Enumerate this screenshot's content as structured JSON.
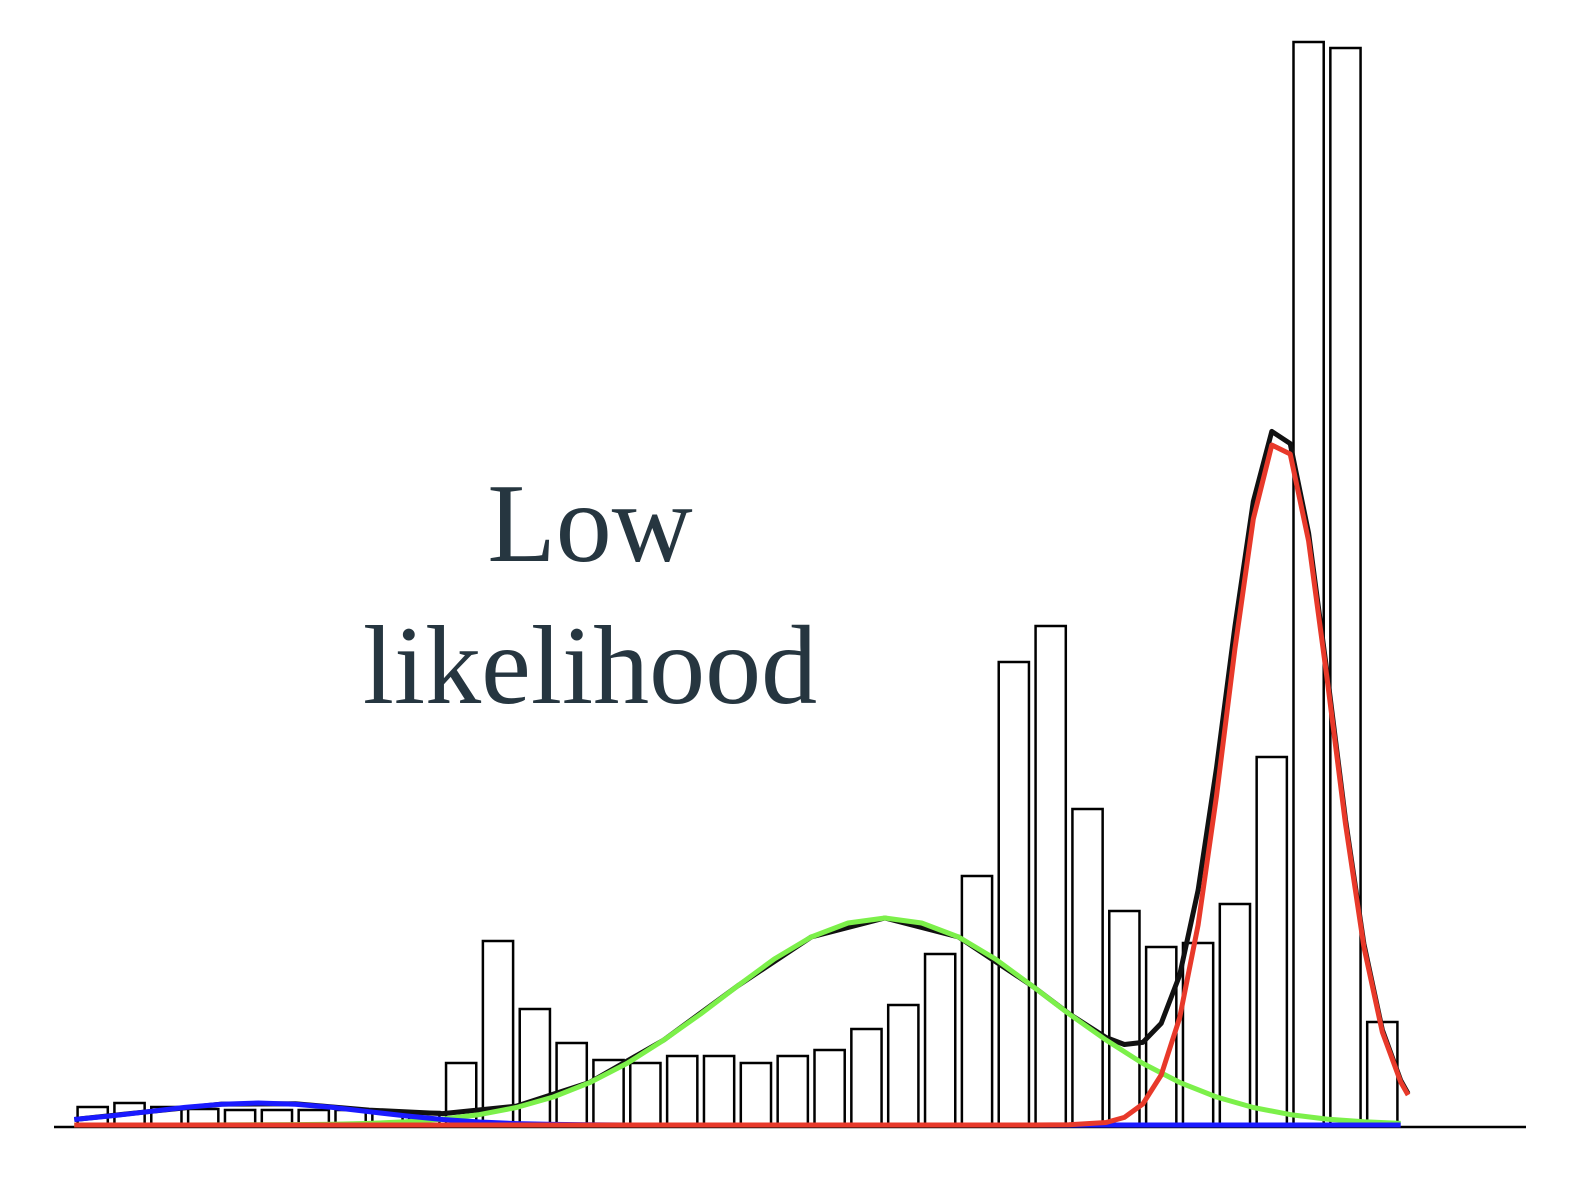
{
  "chart_data": {
    "type": "histogram",
    "annotation": "Low likelihood",
    "bins": [
      0,
      1,
      2,
      3,
      4,
      5,
      6,
      7,
      8,
      9,
      10,
      11,
      12,
      13,
      14,
      15,
      16,
      17,
      18,
      19,
      20,
      21,
      22,
      23,
      24,
      25,
      26,
      27,
      28,
      29,
      30,
      31,
      32,
      33,
      34,
      35,
      36
    ],
    "values": [
      18,
      22,
      18,
      16,
      15,
      15,
      15,
      15,
      12,
      13,
      62,
      184,
      116,
      82,
      65,
      62,
      69,
      69,
      62,
      69,
      75,
      96,
      120,
      171,
      249,
      463,
      499,
      316,
      214,
      178,
      182,
      221,
      368,
      1083,
      1077,
      103
    ],
    "bar_color": "#000000",
    "xlim": [
      -0.55,
      39.4
    ],
    "ylim": [
      0,
      1090
    ],
    "curves": [
      {
        "color": "#111111",
        "x": [
          0,
          2,
          4,
          6,
          8,
          10,
          12,
          14,
          16,
          18,
          20,
          22,
          24,
          26,
          27,
          28,
          28.5,
          29,
          29.5,
          30,
          30.5,
          31,
          31.5,
          32,
          32.5,
          33,
          33.5,
          34,
          34.5,
          35,
          35.5,
          36,
          36.2
        ],
        "values": [
          5.5,
          13.3,
          20.9,
          21.2,
          14.9,
          11.4,
          18.9,
          42.8,
          85,
          139,
          188,
          207,
          188,
          139,
          111.2,
          87.5,
          80.5,
          82.6,
          101.6,
          149.6,
          234.8,
          357,
          498.3,
          623.5,
          693.6,
          681.4,
          591.9,
          452.9,
          305.4,
          181.2,
          95.3,
          44.6,
          31.4
        ]
      },
      {
        "color": "#7cf04a",
        "x": [
          0,
          1,
          2,
          3,
          4,
          5,
          6,
          7,
          8,
          9,
          10,
          11,
          12,
          13,
          14,
          15,
          16,
          17,
          18,
          19,
          20,
          21,
          22,
          23,
          24,
          25,
          26,
          27,
          28,
          29,
          30,
          31,
          32,
          33,
          34,
          35,
          36
        ],
        "values": [
          0,
          0,
          0,
          0,
          0.1,
          0.2,
          0.4,
          0.8,
          1.6,
          3.2,
          5.9,
          10.4,
          17.5,
          28,
          42.6,
          61.6,
          85,
          111,
          139,
          166,
          188,
          202,
          207,
          202,
          188,
          166,
          139,
          111,
          85,
          61.6,
          42.6,
          28,
          17.5,
          10.4,
          5.9,
          3.2,
          1.6
        ]
      },
      {
        "color": "#1a1aff",
        "x": [
          0,
          1,
          2,
          3,
          4,
          5,
          6,
          7,
          8,
          9,
          10,
          11,
          12,
          13,
          14,
          15,
          16,
          17,
          18,
          19,
          20,
          21,
          22,
          23,
          24,
          25,
          26,
          27,
          28,
          29,
          30,
          31,
          32,
          33,
          34,
          35,
          36
        ],
        "values": [
          5.5,
          9.1,
          13.3,
          17.6,
          20.8,
          22,
          20.8,
          17.6,
          13.3,
          9.1,
          5.5,
          3,
          1.4,
          0.6,
          0.2,
          0,
          0,
          0,
          0,
          0,
          0,
          0,
          0,
          0,
          0,
          0,
          0,
          0,
          0,
          0,
          0,
          0,
          0,
          0,
          0,
          0,
          0
        ]
      },
      {
        "color": "#e8392a",
        "x": [
          0,
          26,
          27,
          28,
          28.5,
          29,
          29.5,
          30,
          30.5,
          31,
          31.5,
          32,
          32.5,
          33,
          33.5,
          34,
          34.5,
          35,
          35.5,
          36,
          36.2
        ],
        "values": [
          0,
          0,
          0.2,
          2.5,
          7.6,
          21,
          50,
          107,
          200,
          329,
          476,
          606,
          680,
          671,
          584,
          447,
          301,
          178,
          93,
          43,
          30
        ]
      }
    ]
  }
}
